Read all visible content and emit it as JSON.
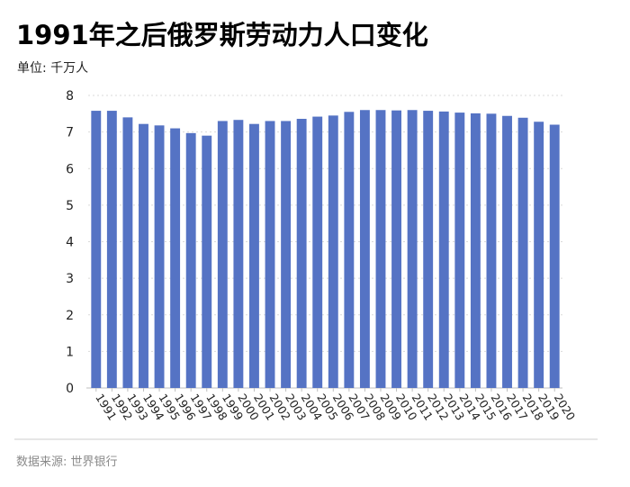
{
  "title": "1991年之后俄罗斯劳动力人口变化",
  "unit_label": "单位: 千万人",
  "source": "数据来源: 世界银行",
  "colors": {
    "bar": "#5573c4",
    "grid": "#d9d9d9",
    "axis": "#bfbfbf"
  },
  "chart_data": {
    "type": "bar",
    "categories": [
      "1991",
      "1992",
      "1993",
      "1994",
      "1995",
      "1996",
      "1997",
      "1998",
      "1999",
      "2000",
      "2001",
      "2002",
      "2003",
      "2004",
      "2005",
      "2006",
      "2007",
      "2008",
      "2009",
      "2010",
      "2011",
      "2012",
      "2013",
      "2014",
      "2015",
      "2016",
      "2017",
      "2018",
      "2019",
      "2020"
    ],
    "values": [
      7.58,
      7.58,
      7.4,
      7.22,
      7.18,
      7.1,
      6.97,
      6.9,
      7.3,
      7.33,
      7.22,
      7.3,
      7.3,
      7.36,
      7.42,
      7.45,
      7.55,
      7.6,
      7.6,
      7.59,
      7.6,
      7.58,
      7.56,
      7.53,
      7.51,
      7.5,
      7.44,
      7.39,
      7.28,
      7.2
    ],
    "ylim": [
      0,
      8
    ],
    "yticks": [
      0,
      1,
      2,
      3,
      4,
      5,
      6,
      7,
      8
    ],
    "grid": true,
    "legend": "none"
  }
}
